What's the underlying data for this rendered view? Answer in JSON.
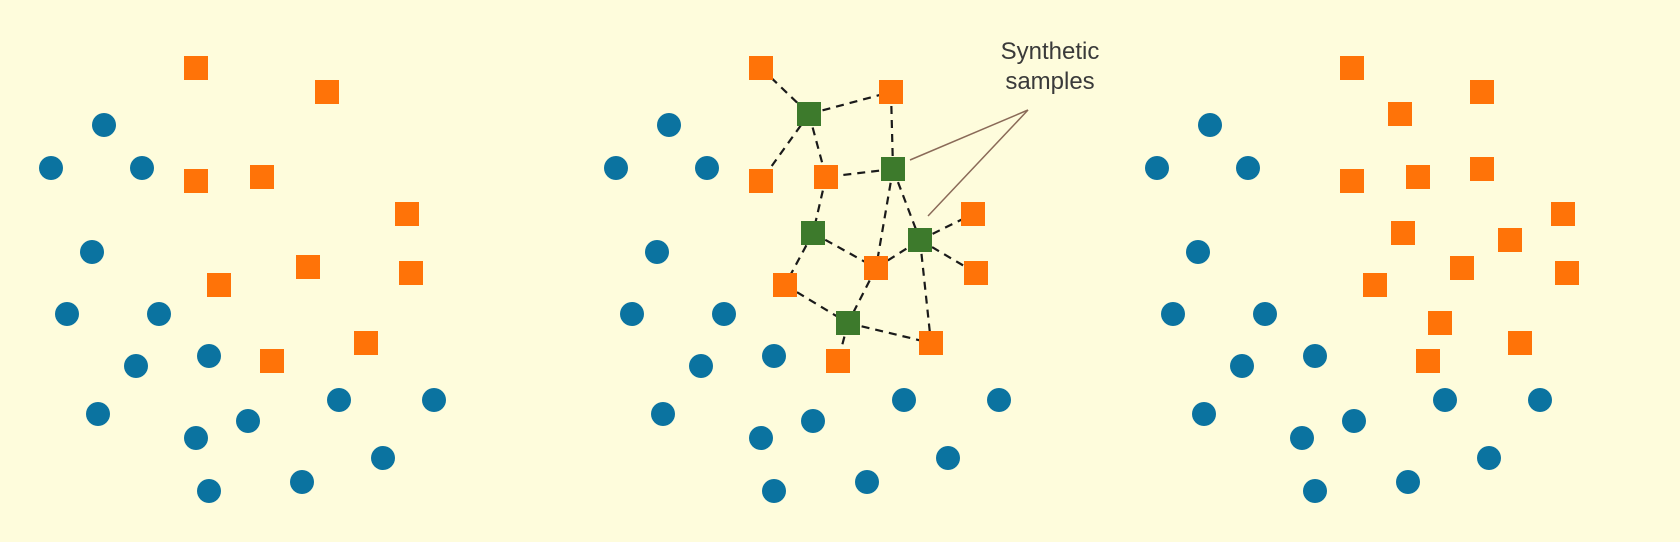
{
  "colors": {
    "background": "#fefcdc",
    "majority_class": "#0b73a0",
    "minority_class": "#ff7308",
    "synthetic_class": "#3d7a2c",
    "link_line": "#1a1a1a",
    "callout_line": "#8a6a58",
    "label_text": "#3a3a3a"
  },
  "shapes": {
    "majority_class": "circle",
    "minority_class": "square",
    "synthetic_class": "square"
  },
  "annotation": {
    "line1": "Synthetic",
    "line2": "samples"
  }
}
